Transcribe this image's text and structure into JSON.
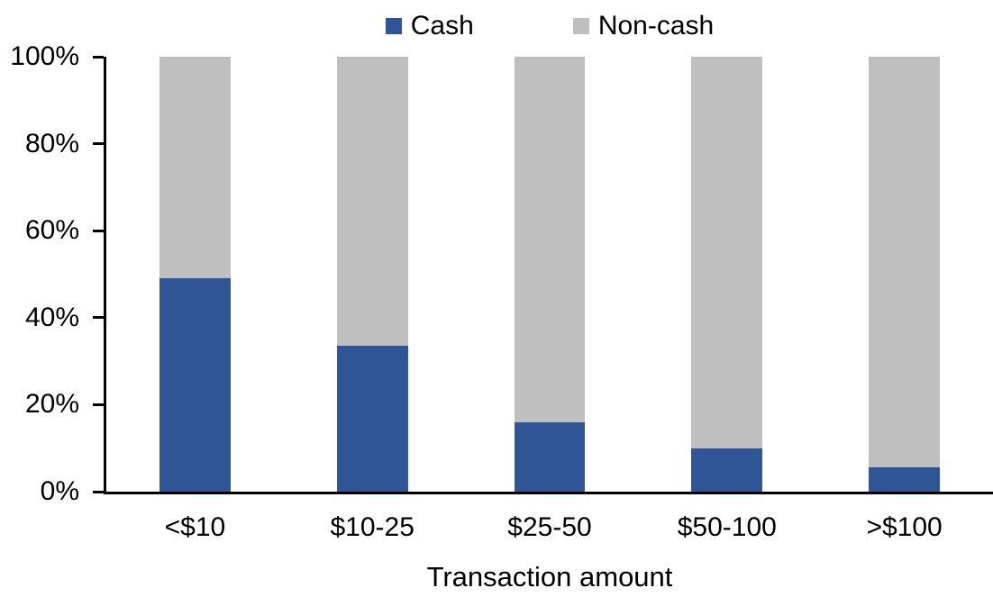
{
  "chart_data": {
    "type": "bar",
    "stacked": true,
    "percent_stacked": true,
    "title": "",
    "xlabel": "Transaction amount",
    "ylabel": "",
    "categories": [
      "<$10",
      "$10-25",
      "$25-50",
      "$50-100",
      ">$100"
    ],
    "series": [
      {
        "name": "Cash",
        "color": "#2F5597",
        "values": [
          49,
          33.5,
          16,
          10,
          5.5
        ]
      },
      {
        "name": "Non-cash",
        "color": "#BFBFBF",
        "values": [
          51,
          66.5,
          84,
          90,
          94.5
        ]
      }
    ],
    "ylim": [
      0,
      100
    ],
    "ytick_values": [
      0,
      20,
      40,
      60,
      80,
      100
    ],
    "ytick_labels": [
      "0%",
      "20%",
      "40%",
      "60%",
      "80%",
      "100%"
    ],
    "grid": false,
    "legend_position": "top",
    "axis_color": "#000000",
    "background_color": "#FFFFFF"
  }
}
